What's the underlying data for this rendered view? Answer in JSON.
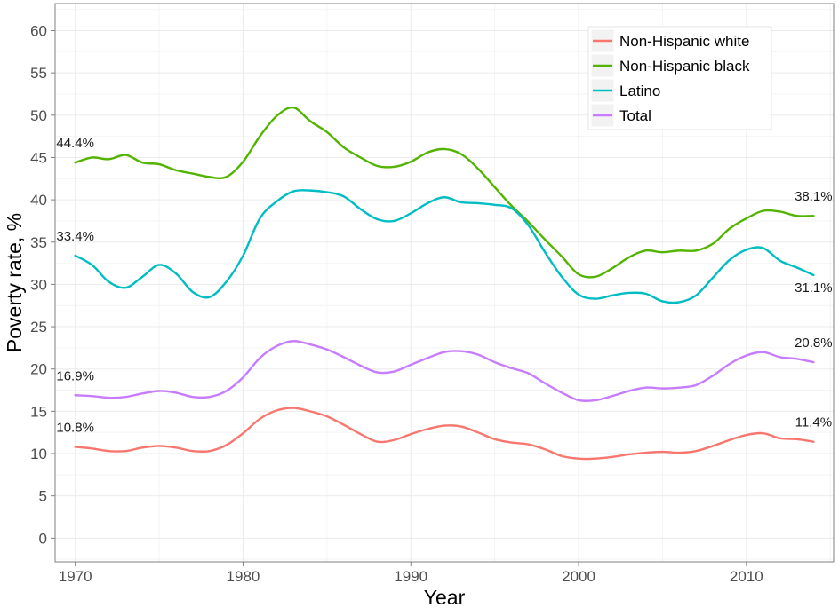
{
  "chart_data": {
    "type": "line",
    "xlabel": "Year",
    "ylabel": "Poverty rate, %",
    "xlim": [
      1968.8,
      2015.2
    ],
    "ylim": [
      -2.8,
      63.2
    ],
    "x_ticks": [
      1970,
      1980,
      1990,
      2000,
      2010
    ],
    "x_tick_labels": [
      "1970",
      "1980",
      "1990",
      "2000",
      "2010"
    ],
    "y_ticks": [
      0,
      5,
      10,
      15,
      20,
      25,
      30,
      35,
      40,
      45,
      50,
      55,
      60
    ],
    "y_tick_labels": [
      "0",
      "5",
      "10",
      "15",
      "20",
      "25",
      "30",
      "35",
      "40",
      "45",
      "50",
      "55",
      "60"
    ],
    "grid": true,
    "legend_position": "top-right",
    "x": [
      1970,
      1971,
      1972,
      1973,
      1974,
      1975,
      1976,
      1977,
      1978,
      1979,
      1980,
      1981,
      1982,
      1983,
      1984,
      1985,
      1986,
      1987,
      1988,
      1989,
      1990,
      1991,
      1992,
      1993,
      1994,
      1995,
      1996,
      1997,
      1998,
      1999,
      2000,
      2001,
      2002,
      2003,
      2004,
      2005,
      2006,
      2007,
      2008,
      2009,
      2010,
      2011,
      2012,
      2013,
      2014
    ],
    "series": [
      {
        "name": "Non-Hispanic white",
        "color": "#F8766D",
        "values": [
          10.8,
          10.6,
          10.3,
          10.3,
          10.7,
          10.9,
          10.7,
          10.3,
          10.3,
          11.0,
          12.4,
          14.1,
          15.1,
          15.4,
          15.0,
          14.4,
          13.4,
          12.3,
          11.4,
          11.6,
          12.3,
          12.9,
          13.3,
          13.2,
          12.5,
          11.7,
          11.3,
          11.1,
          10.5,
          9.7,
          9.4,
          9.4,
          9.6,
          9.9,
          10.1,
          10.2,
          10.1,
          10.3,
          10.9,
          11.6,
          12.2,
          12.4,
          11.8,
          11.7,
          11.4
        ]
      },
      {
        "name": "Non-Hispanic black",
        "color": "#53B400",
        "values": [
          44.4,
          45.0,
          44.8,
          45.3,
          44.4,
          44.2,
          43.5,
          43.1,
          42.7,
          42.7,
          44.5,
          47.5,
          49.9,
          50.9,
          49.3,
          48.0,
          46.2,
          45.0,
          44.0,
          43.9,
          44.5,
          45.6,
          46.0,
          45.4,
          43.7,
          41.5,
          39.3,
          37.4,
          35.3,
          33.3,
          31.2,
          30.9,
          31.9,
          33.2,
          34.0,
          33.8,
          34.0,
          34.0,
          34.8,
          36.6,
          37.8,
          38.7,
          38.6,
          38.1,
          38.1
        ]
      },
      {
        "name": "Latino",
        "color": "#00BDC4",
        "values": [
          33.4,
          32.3,
          30.3,
          29.6,
          30.9,
          32.3,
          31.3,
          29.1,
          28.5,
          30.3,
          33.4,
          37.8,
          39.8,
          41.0,
          41.1,
          40.9,
          40.4,
          38.9,
          37.7,
          37.5,
          38.4,
          39.6,
          40.3,
          39.7,
          39.6,
          39.4,
          39.0,
          37.0,
          33.8,
          30.9,
          28.8,
          28.3,
          28.7,
          29.0,
          28.9,
          28.0,
          27.9,
          28.7,
          30.8,
          32.9,
          34.1,
          34.3,
          32.8,
          32.0,
          31.1
        ]
      },
      {
        "name": "Total",
        "color": "#C77CFF",
        "values": [
          16.9,
          16.8,
          16.6,
          16.7,
          17.1,
          17.4,
          17.2,
          16.7,
          16.7,
          17.4,
          19.0,
          21.3,
          22.7,
          23.3,
          22.9,
          22.3,
          21.4,
          20.4,
          19.6,
          19.7,
          20.5,
          21.3,
          22.0,
          22.1,
          21.7,
          20.8,
          20.1,
          19.5,
          18.3,
          17.2,
          16.3,
          16.3,
          16.8,
          17.4,
          17.8,
          17.7,
          17.8,
          18.1,
          19.2,
          20.6,
          21.6,
          22.0,
          21.4,
          21.2,
          20.8
        ]
      }
    ],
    "annotations": [
      {
        "text": "44.4%",
        "x": 1970,
        "y": 44.4,
        "position": "above"
      },
      {
        "text": "33.4%",
        "x": 1970,
        "y": 33.4,
        "position": "above"
      },
      {
        "text": "16.9%",
        "x": 1970,
        "y": 16.9,
        "position": "above"
      },
      {
        "text": "10.8%",
        "x": 1970,
        "y": 10.8,
        "position": "above"
      },
      {
        "text": "38.1%",
        "x": 2014,
        "y": 38.1,
        "position": "above"
      },
      {
        "text": "31.1%",
        "x": 2014,
        "y": 31.1,
        "position": "below"
      },
      {
        "text": "20.8%",
        "x": 2014,
        "y": 20.8,
        "position": "above"
      },
      {
        "text": "11.4%",
        "x": 2014,
        "y": 11.4,
        "position": "above"
      }
    ]
  }
}
